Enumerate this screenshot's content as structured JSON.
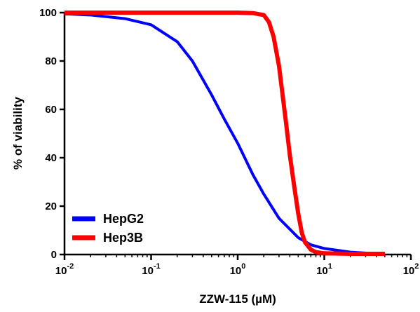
{
  "chart_data": {
    "type": "line",
    "xlabel": "ZZW-115 (µM)",
    "ylabel": "% of viability",
    "x_scale": "log",
    "xlim": [
      0.01,
      100
    ],
    "ylim": [
      0,
      100
    ],
    "x_ticks": [
      {
        "base": "10",
        "exp": "-2",
        "value": 0.01
      },
      {
        "base": "10",
        "exp": "-1",
        "value": 0.1
      },
      {
        "base": "10",
        "exp": "0",
        "value": 1
      },
      {
        "base": "10",
        "exp": "1",
        "value": 10
      },
      {
        "base": "10",
        "exp": "2",
        "value": 100
      }
    ],
    "y_ticks": [
      "0",
      "20",
      "40",
      "60",
      "80",
      "100"
    ],
    "legend_position": "bottom-left",
    "series": [
      {
        "name": "HepG2",
        "color": "#0000ff",
        "x": [
          0.01,
          0.02,
          0.05,
          0.1,
          0.2,
          0.3,
          0.5,
          0.7,
          1,
          1.5,
          2,
          3,
          5,
          7,
          10,
          20,
          30,
          50
        ],
        "y": [
          99.5,
          99,
          97.5,
          95,
          88,
          80,
          66,
          56,
          46,
          33,
          25,
          15,
          7,
          4,
          2.5,
          1,
          0.6,
          0.4
        ]
      },
      {
        "name": "Hep3B",
        "color": "#ff0000",
        "x": [
          0.01,
          0.1,
          1,
          1.5,
          2,
          2.3,
          2.6,
          3,
          3.3,
          3.6,
          4,
          4.5,
          5,
          5.5,
          6,
          7,
          8,
          10,
          20,
          50
        ],
        "y": [
          100,
          100,
          100,
          99.8,
          99,
          96,
          90,
          78,
          66,
          55,
          41,
          28,
          17,
          9,
          5,
          2,
          1,
          0.5,
          0.3,
          0.3
        ]
      }
    ]
  }
}
